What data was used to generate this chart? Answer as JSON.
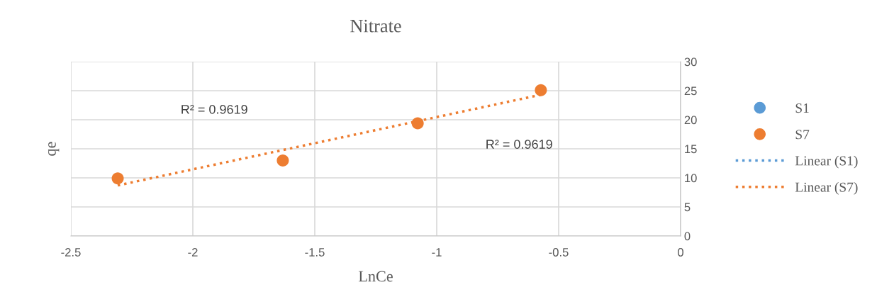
{
  "chart_data": {
    "type": "scatter",
    "title": "Nitrate",
    "xlabel": "LnCe",
    "ylabel": "qe",
    "series": [
      {
        "name": "S1",
        "color": "#5b9bd5",
        "marker": "circle"
      },
      {
        "name": "S7",
        "color": "#ed7d31",
        "marker": "circle",
        "x": [
          -2.308,
          -1.631,
          -1.078,
          -0.573
        ],
        "values": [
          9.9,
          13.0,
          19.4,
          25.1
        ]
      },
      {
        "name": "Linear (S1)",
        "type": "line",
        "color": "#5b9bd5",
        "line_style": "dotted"
      },
      {
        "name": "Linear (S7)",
        "type": "line",
        "color": "#ed7d31",
        "line_style": "dotted",
        "x": [
          -2.308,
          -0.573
        ],
        "values": [
          8.7,
          24.3
        ]
      }
    ],
    "annotations": [
      "R² = 0.9619",
      "R² = 0.9619"
    ],
    "xlim": [
      -2.5,
      0
    ],
    "xticks": [
      -2.5,
      -2,
      -1.5,
      -1,
      -0.5,
      0
    ],
    "ylim": [
      0,
      30
    ],
    "yticks": [
      0,
      5,
      10,
      15,
      20,
      25,
      30
    ],
    "grid": true,
    "legend": "right"
  }
}
